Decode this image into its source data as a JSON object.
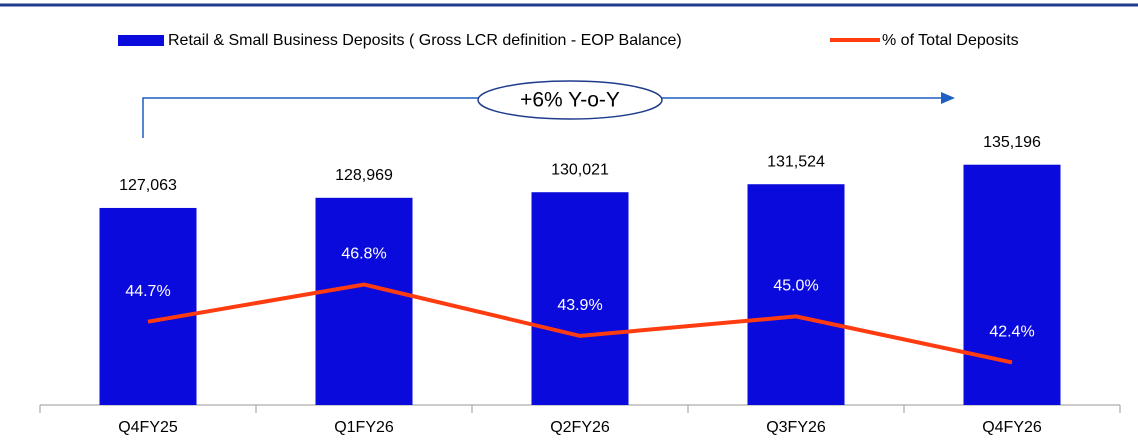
{
  "chart_data": {
    "type": "bar",
    "annotation": "+6% Y-o-Y",
    "categories": [
      "Q4FY25",
      "Q1FY26",
      "Q2FY26",
      "Q3FY26",
      "Q4FY26"
    ],
    "series": [
      {
        "name": "Retail & Small Business Deposits ( Gross LCR definition - EOP Balance)",
        "type": "bar",
        "color": "#0a0adc",
        "values": [
          127063,
          128969,
          130021,
          131524,
          135196
        ],
        "value_labels": [
          "127,063",
          "128,969",
          "130,021",
          "131,524",
          "135,196"
        ]
      },
      {
        "name": "% of Total Deposits",
        "type": "line",
        "axis": "y2",
        "color": "#ff3b10",
        "values": [
          44.7,
          46.8,
          43.9,
          45.0,
          42.4
        ],
        "value_labels": [
          "44.7%",
          "46.8%",
          "43.9%",
          "45.0%",
          "42.4%"
        ]
      }
    ],
    "ylim": [
      90000,
      150000
    ],
    "y2lim": [
      40,
      58
    ]
  }
}
